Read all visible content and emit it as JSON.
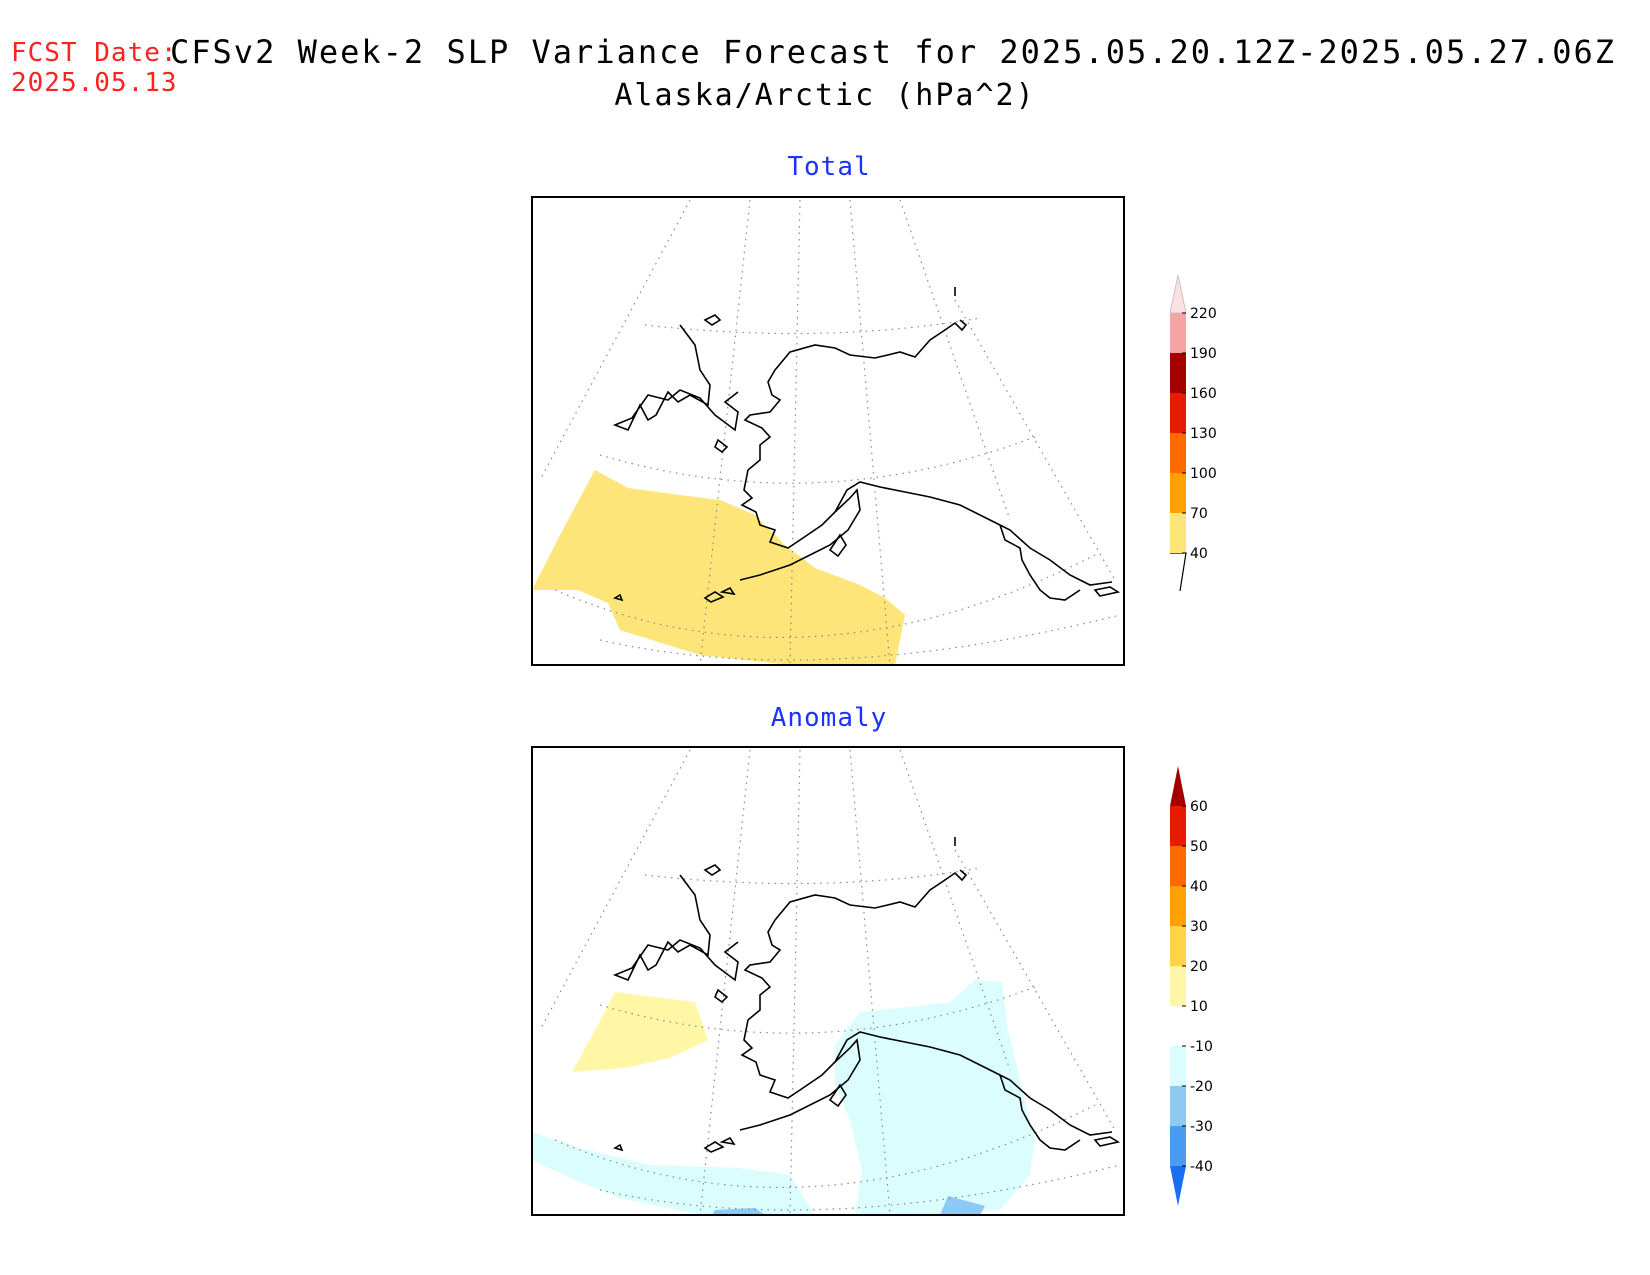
{
  "header": {
    "fcst_label": "FCST Date:",
    "fcst_date": "2025.05.13",
    "title_line1": "CFSv2 Week-2 SLP Variance Forecast for 2025.05.20.12Z-2025.05.27.06Z",
    "title_line2": "Alaska/Arctic (hPa^2)"
  },
  "panels": {
    "total": {
      "title": "Total",
      "colorbar": {
        "levels": [
          "40",
          "70",
          "100",
          "130",
          "160",
          "190",
          "220"
        ],
        "colors": [
          "#fde57a",
          "#ffa100",
          "#ff6a00",
          "#e81b00",
          "#a50000",
          "#f6a3a3",
          "#fde0e0"
        ]
      }
    },
    "anomaly": {
      "title": "Anomaly",
      "colorbar": {
        "levels": [
          "-40",
          "-30",
          "-20",
          "-10",
          "10",
          "20",
          "30",
          "40",
          "50",
          "60"
        ],
        "colors": [
          "#1a6ff0",
          "#4a9cf0",
          "#8ec8f5",
          "#dcfdfd",
          "#ffffff",
          "#fff7a6",
          "#ffd24a",
          "#ffa100",
          "#ff6a00",
          "#e81b00",
          "#a50000"
        ]
      }
    }
  }
}
